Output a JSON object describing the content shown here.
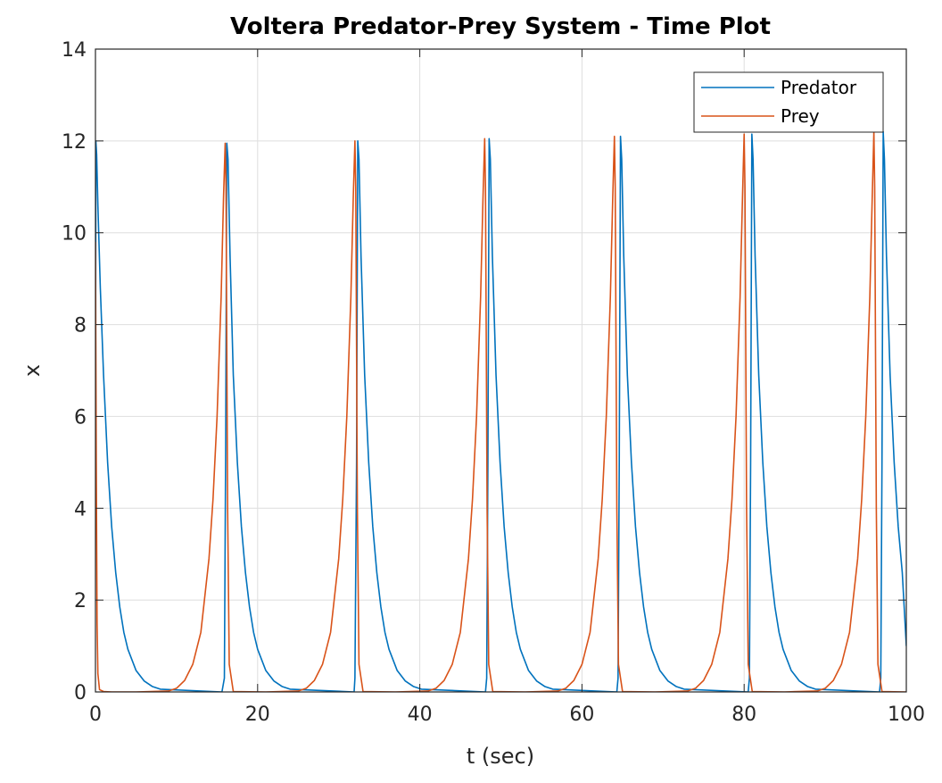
{
  "chart_data": {
    "type": "line",
    "title": "Voltera Predator-Prey System - Time Plot",
    "xlabel": "t (sec)",
    "ylabel": "x",
    "xlim": [
      0,
      100
    ],
    "ylim": [
      0,
      14
    ],
    "xticks": [
      0,
      20,
      40,
      60,
      80,
      100
    ],
    "yticks": [
      0,
      2,
      4,
      6,
      8,
      10,
      12,
      14
    ],
    "grid": true,
    "legend_position": "top-right",
    "series": [
      {
        "name": "Predator",
        "color": "#0072BD",
        "x": [
          0,
          0.05,
          0.15,
          0.3,
          0.6,
          1,
          1.5,
          2,
          2.5,
          3,
          3.5,
          4,
          5,
          6,
          7,
          8,
          15.6,
          15.9,
          16.05,
          16.2,
          16.35,
          16.6,
          17,
          17.5,
          18,
          18.5,
          19,
          19.5,
          20,
          21,
          22,
          23,
          24,
          31.9,
          32.0,
          32.2,
          32.35,
          32.5,
          32.75,
          33.2,
          33.7,
          34.2,
          34.7,
          35.2,
          35.7,
          36.2,
          37.2,
          38.2,
          39.2,
          40.2,
          48.1,
          48.25,
          48.4,
          48.55,
          48.7,
          48.95,
          49.4,
          49.9,
          50.4,
          50.9,
          51.4,
          51.9,
          52.4,
          53.4,
          54.4,
          55.4,
          56.4,
          64.3,
          64.45,
          64.6,
          64.75,
          64.9,
          65.15,
          65.6,
          66.1,
          66.6,
          67.1,
          67.6,
          68.1,
          68.6,
          69.6,
          70.6,
          71.6,
          72.6,
          80.5,
          80.65,
          80.8,
          80.95,
          81.1,
          81.35,
          81.8,
          82.3,
          82.8,
          83.3,
          83.8,
          84.3,
          84.8,
          85.8,
          86.8,
          87.8,
          88.8,
          96.7,
          96.85,
          97.0,
          97.15,
          97.3,
          97.55,
          98.0,
          98.5,
          99.0,
          99.5,
          100
        ],
        "y": [
          4.5,
          12.0,
          11.7,
          10.6,
          8.8,
          6.9,
          5.0,
          3.6,
          2.6,
          1.85,
          1.3,
          0.93,
          0.47,
          0.24,
          0.12,
          0.06,
          0.0,
          0.3,
          5.0,
          11.95,
          11.6,
          9.5,
          6.9,
          5.0,
          3.6,
          2.6,
          1.85,
          1.3,
          0.93,
          0.47,
          0.24,
          0.12,
          0.06,
          0.0,
          0.3,
          5.0,
          12.0,
          11.6,
          9.5,
          6.9,
          5.0,
          3.6,
          2.6,
          1.85,
          1.3,
          0.93,
          0.47,
          0.24,
          0.12,
          0.06,
          0.0,
          0.3,
          5.0,
          12.05,
          11.6,
          9.5,
          6.9,
          5.0,
          3.6,
          2.6,
          1.85,
          1.3,
          0.93,
          0.47,
          0.24,
          0.12,
          0.06,
          0.0,
          0.3,
          5.0,
          12.1,
          11.6,
          9.5,
          6.9,
          5.0,
          3.6,
          2.6,
          1.85,
          1.3,
          0.93,
          0.47,
          0.24,
          0.12,
          0.06,
          0.0,
          0.3,
          5.0,
          12.15,
          11.6,
          9.5,
          6.9,
          5.0,
          3.6,
          2.6,
          1.85,
          1.3,
          0.93,
          0.47,
          0.24,
          0.12,
          0.06,
          0.0,
          0.3,
          5.0,
          12.2,
          11.6,
          9.5,
          6.9,
          5.0,
          3.6,
          2.6,
          1.0
        ]
      },
      {
        "name": "Prey",
        "color": "#D95319",
        "x": [
          0,
          0.1,
          0.2,
          0.3,
          0.5,
          1,
          2,
          5,
          9,
          10,
          11,
          12,
          13,
          14,
          14.5,
          15,
          15.5,
          15.8,
          16.0,
          16.1,
          16.3,
          16.5,
          17,
          21,
          25,
          26,
          27,
          28,
          29,
          30,
          30.5,
          31,
          31.5,
          31.8,
          32.0,
          32.1,
          32.3,
          32.5,
          33,
          37,
          41,
          42,
          43,
          44,
          45,
          46,
          46.5,
          47,
          47.5,
          47.8,
          48.0,
          48.1,
          48.3,
          48.5,
          49,
          53,
          57,
          58,
          59,
          60,
          61,
          62,
          62.5,
          63,
          63.5,
          63.8,
          64.0,
          64.1,
          64.3,
          64.5,
          65,
          69,
          73,
          74,
          75,
          76,
          77,
          78,
          78.5,
          79,
          79.5,
          79.8,
          80.0,
          80.1,
          80.3,
          80.5,
          81,
          85,
          89,
          90,
          91,
          92,
          93,
          94,
          94.5,
          95,
          95.5,
          95.8,
          96.0,
          96.1,
          96.3,
          96.5,
          97,
          100
        ],
        "y": [
          9.8,
          5.0,
          1.5,
          0.4,
          0.05,
          0.01,
          0.0,
          0.0,
          0.02,
          0.08,
          0.25,
          0.6,
          1.3,
          2.9,
          4.2,
          6.0,
          8.6,
          10.8,
          11.95,
          11.0,
          4.0,
          0.6,
          0.01,
          0.0,
          0.02,
          0.08,
          0.25,
          0.6,
          1.3,
          2.9,
          4.2,
          6.0,
          8.6,
          10.8,
          12.0,
          11.0,
          4.0,
          0.6,
          0.01,
          0.0,
          0.02,
          0.08,
          0.25,
          0.6,
          1.3,
          2.9,
          4.2,
          6.0,
          8.6,
          10.8,
          12.05,
          11.0,
          4.0,
          0.6,
          0.01,
          0.0,
          0.02,
          0.08,
          0.25,
          0.6,
          1.3,
          2.9,
          4.2,
          6.0,
          8.6,
          10.8,
          12.1,
          11.0,
          4.0,
          0.6,
          0.01,
          0.0,
          0.02,
          0.08,
          0.25,
          0.6,
          1.3,
          2.9,
          4.2,
          6.0,
          8.6,
          10.8,
          12.15,
          11.0,
          4.0,
          0.6,
          0.01,
          0.0,
          0.02,
          0.08,
          0.25,
          0.6,
          1.3,
          2.9,
          4.2,
          6.0,
          8.6,
          10.8,
          12.2,
          11.0,
          4.0,
          0.6,
          0.01,
          0.0
        ]
      }
    ]
  }
}
